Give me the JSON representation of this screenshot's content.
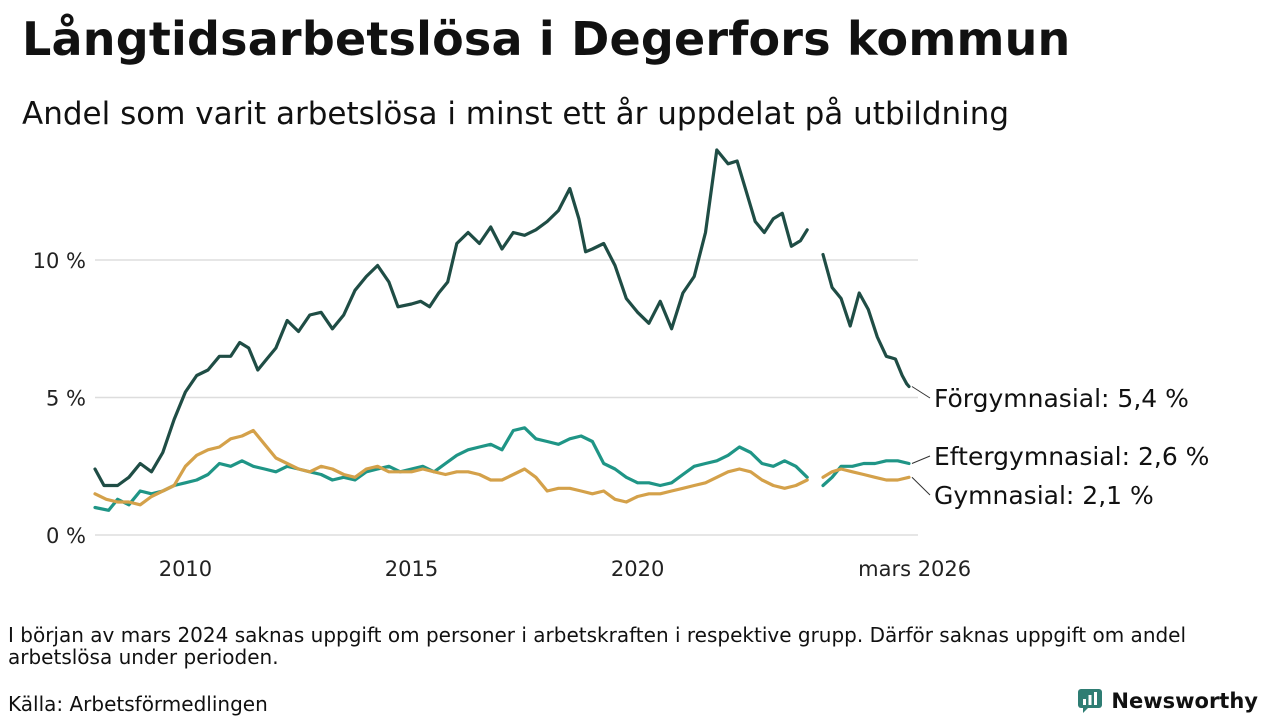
{
  "title": "Långtidsarbetslösa i Degerfors kommun",
  "subtitle": "Andel som varit arbetslösa i minst ett år uppdelat på utbildning",
  "note": "I början av mars 2024 saknas uppgift om personer i arbetskraften i respektive grupp. Därför saknas uppgift om andel arbetslösa under perioden.",
  "source": "Källa: Arbetsförmedlingen",
  "brand": {
    "name": "Newsworthy",
    "color": "#2e7d73"
  },
  "chart_data": {
    "type": "line",
    "title": "Långtidsarbetslösa i Degerfors kommun",
    "xlabel": "",
    "ylabel": "",
    "xlim": [
      2008.0,
      2026.2
    ],
    "ylim": [
      0,
      14
    ],
    "grid": true,
    "y_ticks": [
      0,
      5,
      10
    ],
    "y_tick_labels": [
      "0 %",
      "5 %",
      "10 %"
    ],
    "x_ticks": [
      2010,
      2015,
      2020,
      2026.17
    ],
    "x_tick_labels": [
      "2010",
      "2015",
      "2020",
      "mars 2026"
    ],
    "gap": [
      2023.85,
      2024.1
    ],
    "series": [
      {
        "name": "Förgymnasial",
        "label": "Förgymnasial: 5,4 %",
        "color": "#1f4d45",
        "points": [
          [
            2008.0,
            2.4
          ],
          [
            2008.2,
            1.8
          ],
          [
            2008.5,
            1.8
          ],
          [
            2008.75,
            2.1
          ],
          [
            2009.0,
            2.6
          ],
          [
            2009.25,
            2.3
          ],
          [
            2009.5,
            3.0
          ],
          [
            2009.75,
            4.2
          ],
          [
            2010.0,
            5.2
          ],
          [
            2010.25,
            5.8
          ],
          [
            2010.5,
            6.0
          ],
          [
            2010.75,
            6.5
          ],
          [
            2011.0,
            6.5
          ],
          [
            2011.2,
            7.0
          ],
          [
            2011.4,
            6.8
          ],
          [
            2011.6,
            6.0
          ],
          [
            2011.8,
            6.4
          ],
          [
            2012.0,
            6.8
          ],
          [
            2012.25,
            7.8
          ],
          [
            2012.5,
            7.4
          ],
          [
            2012.75,
            8.0
          ],
          [
            2013.0,
            8.1
          ],
          [
            2013.25,
            7.5
          ],
          [
            2013.5,
            8.0
          ],
          [
            2013.75,
            8.9
          ],
          [
            2014.0,
            9.4
          ],
          [
            2014.25,
            9.8
          ],
          [
            2014.5,
            9.2
          ],
          [
            2014.7,
            8.3
          ],
          [
            2015.0,
            8.4
          ],
          [
            2015.2,
            8.5
          ],
          [
            2015.4,
            8.3
          ],
          [
            2015.6,
            8.8
          ],
          [
            2015.8,
            9.2
          ],
          [
            2016.0,
            10.6
          ],
          [
            2016.25,
            11.0
          ],
          [
            2016.5,
            10.6
          ],
          [
            2016.75,
            11.2
          ],
          [
            2017.0,
            10.4
          ],
          [
            2017.25,
            11.0
          ],
          [
            2017.5,
            10.9
          ],
          [
            2017.75,
            11.1
          ],
          [
            2018.0,
            11.4
          ],
          [
            2018.25,
            11.8
          ],
          [
            2018.5,
            12.6
          ],
          [
            2018.7,
            11.5
          ],
          [
            2018.85,
            10.3
          ],
          [
            2019.0,
            10.4
          ],
          [
            2019.25,
            10.6
          ],
          [
            2019.5,
            9.8
          ],
          [
            2019.75,
            8.6
          ],
          [
            2020.0,
            8.1
          ],
          [
            2020.25,
            7.7
          ],
          [
            2020.5,
            8.5
          ],
          [
            2020.75,
            7.5
          ],
          [
            2021.0,
            8.8
          ],
          [
            2021.25,
            9.4
          ],
          [
            2021.5,
            11.0
          ],
          [
            2021.75,
            14.0
          ],
          [
            2022.0,
            13.5
          ],
          [
            2022.2,
            13.6
          ],
          [
            2022.4,
            12.5
          ],
          [
            2022.6,
            11.4
          ],
          [
            2022.8,
            11.0
          ],
          [
            2023.0,
            11.5
          ],
          [
            2023.2,
            11.7
          ],
          [
            2023.4,
            10.5
          ],
          [
            2023.6,
            10.7
          ],
          [
            2023.75,
            11.1
          ],
          [
            2024.1,
            10.2
          ],
          [
            2024.3,
            9.0
          ],
          [
            2024.5,
            8.6
          ],
          [
            2024.7,
            7.6
          ],
          [
            2024.9,
            8.8
          ],
          [
            2025.1,
            8.2
          ],
          [
            2025.3,
            7.2
          ],
          [
            2025.5,
            6.5
          ],
          [
            2025.7,
            6.4
          ],
          [
            2025.85,
            5.8
          ],
          [
            2025.95,
            5.5
          ],
          [
            2026.0,
            5.4
          ]
        ]
      },
      {
        "name": "Eftergymnasial",
        "label": "Eftergymnasial: 2,6 %",
        "color": "#1f9586",
        "points": [
          [
            2008.0,
            1.0
          ],
          [
            2008.3,
            0.9
          ],
          [
            2008.5,
            1.3
          ],
          [
            2008.75,
            1.1
          ],
          [
            2009.0,
            1.6
          ],
          [
            2009.25,
            1.5
          ],
          [
            2009.5,
            1.6
          ],
          [
            2009.75,
            1.8
          ],
          [
            2010.0,
            1.9
          ],
          [
            2010.25,
            2.0
          ],
          [
            2010.5,
            2.2
          ],
          [
            2010.75,
            2.6
          ],
          [
            2011.0,
            2.5
          ],
          [
            2011.25,
            2.7
          ],
          [
            2011.5,
            2.5
          ],
          [
            2011.75,
            2.4
          ],
          [
            2012.0,
            2.3
          ],
          [
            2012.25,
            2.5
          ],
          [
            2012.5,
            2.4
          ],
          [
            2012.75,
            2.3
          ],
          [
            2013.0,
            2.2
          ],
          [
            2013.25,
            2.0
          ],
          [
            2013.5,
            2.1
          ],
          [
            2013.75,
            2.0
          ],
          [
            2014.0,
            2.3
          ],
          [
            2014.25,
            2.4
          ],
          [
            2014.5,
            2.5
          ],
          [
            2014.75,
            2.3
          ],
          [
            2015.0,
            2.4
          ],
          [
            2015.25,
            2.5
          ],
          [
            2015.5,
            2.3
          ],
          [
            2015.75,
            2.6
          ],
          [
            2016.0,
            2.9
          ],
          [
            2016.25,
            3.1
          ],
          [
            2016.5,
            3.2
          ],
          [
            2016.75,
            3.3
          ],
          [
            2017.0,
            3.1
          ],
          [
            2017.25,
            3.8
          ],
          [
            2017.5,
            3.9
          ],
          [
            2017.75,
            3.5
          ],
          [
            2018.0,
            3.4
          ],
          [
            2018.25,
            3.3
          ],
          [
            2018.5,
            3.5
          ],
          [
            2018.75,
            3.6
          ],
          [
            2019.0,
            3.4
          ],
          [
            2019.25,
            2.6
          ],
          [
            2019.5,
            2.4
          ],
          [
            2019.75,
            2.1
          ],
          [
            2020.0,
            1.9
          ],
          [
            2020.25,
            1.9
          ],
          [
            2020.5,
            1.8
          ],
          [
            2020.75,
            1.9
          ],
          [
            2021.0,
            2.2
          ],
          [
            2021.25,
            2.5
          ],
          [
            2021.5,
            2.6
          ],
          [
            2021.75,
            2.7
          ],
          [
            2022.0,
            2.9
          ],
          [
            2022.25,
            3.2
          ],
          [
            2022.5,
            3.0
          ],
          [
            2022.75,
            2.6
          ],
          [
            2023.0,
            2.5
          ],
          [
            2023.25,
            2.7
          ],
          [
            2023.5,
            2.5
          ],
          [
            2023.75,
            2.1
          ],
          [
            2024.1,
            1.8
          ],
          [
            2024.3,
            2.1
          ],
          [
            2024.5,
            2.5
          ],
          [
            2024.75,
            2.5
          ],
          [
            2025.0,
            2.6
          ],
          [
            2025.25,
            2.6
          ],
          [
            2025.5,
            2.7
          ],
          [
            2025.75,
            2.7
          ],
          [
            2026.0,
            2.6
          ]
        ]
      },
      {
        "name": "Gymnasial",
        "label": "Gymnasial: 2,1 %",
        "color": "#d4a14a",
        "points": [
          [
            2008.0,
            1.5
          ],
          [
            2008.25,
            1.3
          ],
          [
            2008.5,
            1.2
          ],
          [
            2008.75,
            1.2
          ],
          [
            2009.0,
            1.1
          ],
          [
            2009.25,
            1.4
          ],
          [
            2009.5,
            1.6
          ],
          [
            2009.75,
            1.8
          ],
          [
            2010.0,
            2.5
          ],
          [
            2010.25,
            2.9
          ],
          [
            2010.5,
            3.1
          ],
          [
            2010.75,
            3.2
          ],
          [
            2011.0,
            3.5
          ],
          [
            2011.25,
            3.6
          ],
          [
            2011.5,
            3.8
          ],
          [
            2011.75,
            3.3
          ],
          [
            2012.0,
            2.8
          ],
          [
            2012.25,
            2.6
          ],
          [
            2012.5,
            2.4
          ],
          [
            2012.75,
            2.3
          ],
          [
            2013.0,
            2.5
          ],
          [
            2013.25,
            2.4
          ],
          [
            2013.5,
            2.2
          ],
          [
            2013.75,
            2.1
          ],
          [
            2014.0,
            2.4
          ],
          [
            2014.25,
            2.5
          ],
          [
            2014.5,
            2.3
          ],
          [
            2014.75,
            2.3
          ],
          [
            2015.0,
            2.3
          ],
          [
            2015.25,
            2.4
          ],
          [
            2015.5,
            2.3
          ],
          [
            2015.75,
            2.2
          ],
          [
            2016.0,
            2.3
          ],
          [
            2016.25,
            2.3
          ],
          [
            2016.5,
            2.2
          ],
          [
            2016.75,
            2.0
          ],
          [
            2017.0,
            2.0
          ],
          [
            2017.25,
            2.2
          ],
          [
            2017.5,
            2.4
          ],
          [
            2017.75,
            2.1
          ],
          [
            2018.0,
            1.6
          ],
          [
            2018.25,
            1.7
          ],
          [
            2018.5,
            1.7
          ],
          [
            2018.75,
            1.6
          ],
          [
            2019.0,
            1.5
          ],
          [
            2019.25,
            1.6
          ],
          [
            2019.5,
            1.3
          ],
          [
            2019.75,
            1.2
          ],
          [
            2020.0,
            1.4
          ],
          [
            2020.25,
            1.5
          ],
          [
            2020.5,
            1.5
          ],
          [
            2020.75,
            1.6
          ],
          [
            2021.0,
            1.7
          ],
          [
            2021.25,
            1.8
          ],
          [
            2021.5,
            1.9
          ],
          [
            2021.75,
            2.1
          ],
          [
            2022.0,
            2.3
          ],
          [
            2022.25,
            2.4
          ],
          [
            2022.5,
            2.3
          ],
          [
            2022.75,
            2.0
          ],
          [
            2023.0,
            1.8
          ],
          [
            2023.25,
            1.7
          ],
          [
            2023.5,
            1.8
          ],
          [
            2023.75,
            2.0
          ],
          [
            2024.1,
            2.1
          ],
          [
            2024.3,
            2.3
          ],
          [
            2024.5,
            2.4
          ],
          [
            2024.75,
            2.3
          ],
          [
            2025.0,
            2.2
          ],
          [
            2025.25,
            2.1
          ],
          [
            2025.5,
            2.0
          ],
          [
            2025.75,
            2.0
          ],
          [
            2026.0,
            2.1
          ]
        ]
      }
    ]
  }
}
